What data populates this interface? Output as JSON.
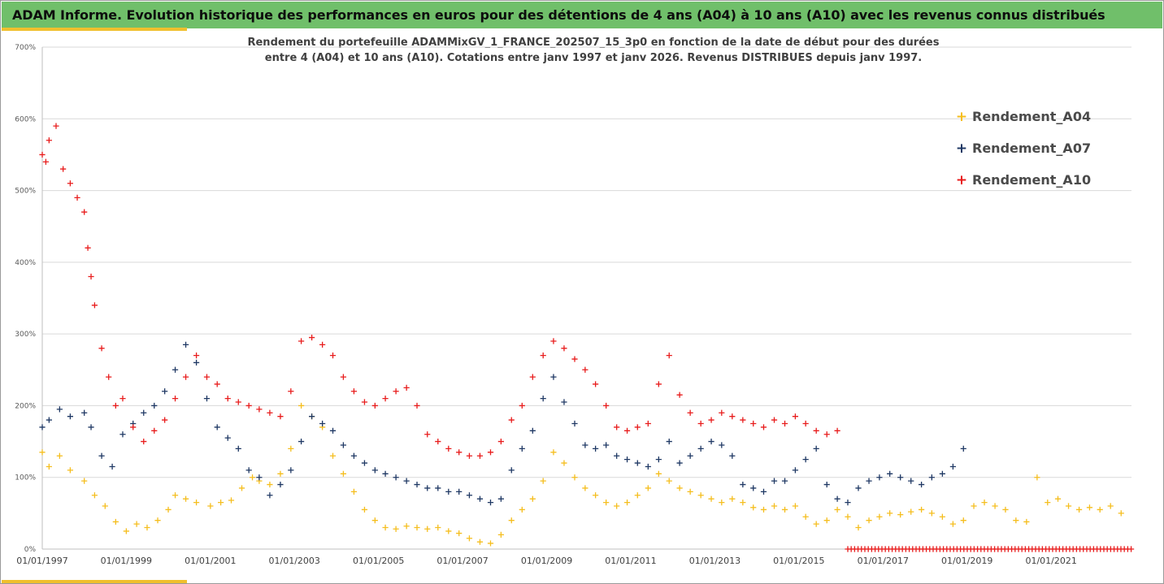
{
  "header": {
    "title": "ADAM Informe. Evolution historique des performances en euros pour des détentions de 4 ans (A04) à 10 ans (A10) avec les revenus connus distribués"
  },
  "colors": {
    "banner": "#70bf6a",
    "accent": "#f0c02e",
    "A04": "#f5be1e",
    "A07": "#1f3864",
    "A10": "#e81c1c"
  },
  "chart_data": {
    "type": "scatter",
    "subtitle_lines": [
      "Rendement du portefeuille ADAMMixGV_1_FRANCE_202507_15_3p0  en fonction de la date de début pour des durées",
      "entre 4 (A04) et 10 ans (A10). Cotations entre janv 1997 et janv 2026. Revenus DISTRIBUES depuis janv 1997."
    ],
    "xlabel": "",
    "ylabel": "",
    "x_range": [
      "1997-01-01",
      "2022-11-30"
    ],
    "ylim": [
      0,
      700
    ],
    "y_ticks": [
      0,
      100,
      200,
      300,
      400,
      500,
      600,
      700
    ],
    "y_tick_labels": [
      "0%",
      "100%",
      "200%",
      "300%",
      "400%",
      "500%",
      "600%",
      "700%"
    ],
    "x_ticks": [
      "1997-01-01",
      "1999-01-01",
      "2001-01-01",
      "2003-01-01",
      "2005-01-01",
      "2007-01-01",
      "2009-01-01",
      "2011-01-01",
      "2013-01-01",
      "2015-01-01",
      "2017-01-01",
      "2019-01-01",
      "2021-01-01"
    ],
    "x_tick_labels": [
      "01/01/1997",
      "01/01/1999",
      "01/01/2001",
      "01/01/2003",
      "01/01/2005",
      "01/01/2007",
      "01/01/2009",
      "01/01/2011",
      "01/01/2013",
      "01/01/2015",
      "01/01/2017",
      "01/01/2019",
      "01/01/2021"
    ],
    "grid": "horizontal",
    "legend_position": "top-right",
    "series": [
      {
        "name": "Rendement_A04",
        "color": "#f5be1e",
        "x": [
          "1997-01-01",
          "1997-03-01",
          "1997-06-01",
          "1997-09-01",
          "1998-01-01",
          "1998-04-01",
          "1998-07-01",
          "1998-10-01",
          "1999-01-01",
          "1999-04-01",
          "1999-07-01",
          "1999-10-01",
          "2000-01-01",
          "2000-03-01",
          "2000-06-01",
          "2000-09-01",
          "2001-01-01",
          "2001-04-01",
          "2001-07-01",
          "2001-10-01",
          "2002-01-01",
          "2002-03-01",
          "2002-06-01",
          "2002-09-01",
          "2002-12-01",
          "2003-03-01",
          "2003-06-01",
          "2003-09-01",
          "2003-12-01",
          "2004-03-01",
          "2004-06-01",
          "2004-09-01",
          "2004-12-01",
          "2005-03-01",
          "2005-06-01",
          "2005-09-01",
          "2005-12-01",
          "2006-03-01",
          "2006-06-01",
          "2006-09-01",
          "2006-12-01",
          "2007-03-01",
          "2007-06-01",
          "2007-09-01",
          "2007-12-01",
          "2008-03-01",
          "2008-06-01",
          "2008-09-01",
          "2008-12-01",
          "2009-03-01",
          "2009-06-01",
          "2009-09-01",
          "2009-12-01",
          "2010-03-01",
          "2010-06-01",
          "2010-09-01",
          "2010-12-01",
          "2011-03-01",
          "2011-06-01",
          "2011-09-01",
          "2011-12-01",
          "2012-03-01",
          "2012-06-01",
          "2012-09-01",
          "2012-12-01",
          "2013-03-01",
          "2013-06-01",
          "2013-09-01",
          "2013-12-01",
          "2014-03-01",
          "2014-06-01",
          "2014-09-01",
          "2014-12-01",
          "2015-03-01",
          "2015-06-01",
          "2015-09-01",
          "2015-12-01",
          "2016-03-01",
          "2016-06-01",
          "2016-09-01",
          "2016-12-01",
          "2017-03-01",
          "2017-06-01",
          "2017-09-01",
          "2017-12-01",
          "2018-03-01",
          "2018-06-01",
          "2018-09-01",
          "2018-12-01",
          "2019-03-01",
          "2019-06-01",
          "2019-09-01",
          "2019-12-01",
          "2020-03-01",
          "2020-06-01",
          "2020-09-01",
          "2020-12-01",
          "2021-03-01",
          "2021-06-01",
          "2021-09-01",
          "2021-12-01",
          "2022-03-01",
          "2022-06-01",
          "2022-09-01"
        ],
        "y": [
          135,
          115,
          130,
          110,
          95,
          75,
          60,
          38,
          25,
          35,
          30,
          40,
          55,
          75,
          70,
          65,
          60,
          65,
          68,
          85,
          100,
          95,
          90,
          105,
          140,
          200,
          185,
          170,
          130,
          105,
          80,
          55,
          40,
          30,
          28,
          32,
          30,
          28,
          30,
          25,
          22,
          15,
          10,
          8,
          20,
          40,
          55,
          70,
          95,
          135,
          120,
          100,
          85,
          75,
          65,
          60,
          65,
          75,
          85,
          105,
          95,
          85,
          80,
          75,
          70,
          65,
          70,
          65,
          58,
          55,
          60,
          55,
          60,
          45,
          35,
          40,
          55,
          45,
          30,
          40,
          45,
          50,
          48,
          52,
          55,
          50,
          45,
          35,
          40,
          60,
          65,
          60,
          55,
          40,
          38,
          100,
          65,
          70,
          60,
          55,
          58,
          55,
          60,
          50
        ]
      },
      {
        "name": "Rendement_A07",
        "color": "#1f3864",
        "x": [
          "1997-01-01",
          "1997-03-01",
          "1997-06-01",
          "1997-09-01",
          "1998-01-01",
          "1998-03-01",
          "1998-06-01",
          "1998-09-01",
          "1998-12-01",
          "1999-03-01",
          "1999-06-01",
          "1999-09-01",
          "1999-12-01",
          "2000-03-01",
          "2000-06-01",
          "2000-09-01",
          "2000-12-01",
          "2001-03-01",
          "2001-06-01",
          "2001-09-01",
          "2001-12-01",
          "2002-03-01",
          "2002-06-01",
          "2002-09-01",
          "2002-12-01",
          "2003-03-01",
          "2003-06-01",
          "2003-09-01",
          "2003-12-01",
          "2004-03-01",
          "2004-06-01",
          "2004-09-01",
          "2004-12-01",
          "2005-03-01",
          "2005-06-01",
          "2005-09-01",
          "2005-12-01",
          "2006-03-01",
          "2006-06-01",
          "2006-09-01",
          "2006-12-01",
          "2007-03-01",
          "2007-06-01",
          "2007-09-01",
          "2007-12-01",
          "2008-03-01",
          "2008-06-01",
          "2008-09-01",
          "2008-12-01",
          "2009-03-01",
          "2009-06-01",
          "2009-09-01",
          "2009-12-01",
          "2010-03-01",
          "2010-06-01",
          "2010-09-01",
          "2010-12-01",
          "2011-03-01",
          "2011-06-01",
          "2011-09-01",
          "2011-12-01",
          "2012-03-01",
          "2012-06-01",
          "2012-09-01",
          "2012-12-01",
          "2013-03-01",
          "2013-06-01",
          "2013-09-01",
          "2013-12-01",
          "2014-03-01",
          "2014-06-01",
          "2014-09-01",
          "2014-12-01",
          "2015-03-01",
          "2015-06-01",
          "2015-09-01",
          "2015-12-01",
          "2016-03-01",
          "2016-06-01",
          "2016-09-01",
          "2016-12-01",
          "2017-03-01",
          "2017-06-01",
          "2017-09-01",
          "2017-12-01",
          "2018-03-01",
          "2018-06-01",
          "2018-09-01",
          "2018-12-01"
        ],
        "y": [
          170,
          180,
          195,
          185,
          190,
          170,
          130,
          115,
          160,
          175,
          190,
          200,
          220,
          250,
          285,
          260,
          210,
          170,
          155,
          140,
          110,
          100,
          75,
          90,
          110,
          150,
          185,
          175,
          165,
          145,
          130,
          120,
          110,
          105,
          100,
          95,
          90,
          85,
          85,
          80,
          80,
          75,
          70,
          65,
          70,
          110,
          140,
          165,
          210,
          240,
          205,
          175,
          145,
          140,
          145,
          130,
          125,
          120,
          115,
          125,
          150,
          120,
          130,
          140,
          150,
          145,
          130,
          90,
          85,
          80,
          95,
          95,
          110,
          125,
          140,
          90,
          70,
          65,
          85,
          95,
          100,
          105,
          100,
          95,
          90,
          100,
          105,
          115,
          140
        ]
      },
      {
        "name": "Rendement_A10",
        "color": "#e81c1c",
        "x": [
          "1997-01-01",
          "1997-02-01",
          "1997-03-01",
          "1997-05-01",
          "1997-07-01",
          "1997-09-01",
          "1997-11-01",
          "1998-01-01",
          "1998-02-01",
          "1998-03-01",
          "1998-04-01",
          "1998-06-01",
          "1998-08-01",
          "1998-10-01",
          "1998-12-01",
          "1999-03-01",
          "1999-06-01",
          "1999-09-01",
          "1999-12-01",
          "2000-03-01",
          "2000-06-01",
          "2000-09-01",
          "2000-12-01",
          "2001-03-01",
          "2001-06-01",
          "2001-09-01",
          "2001-12-01",
          "2002-03-01",
          "2002-06-01",
          "2002-09-01",
          "2002-12-01",
          "2003-03-01",
          "2003-06-01",
          "2003-09-01",
          "2003-12-01",
          "2004-03-01",
          "2004-06-01",
          "2004-09-01",
          "2004-12-01",
          "2005-03-01",
          "2005-06-01",
          "2005-09-01",
          "2005-12-01",
          "2006-03-01",
          "2006-06-01",
          "2006-09-01",
          "2006-12-01",
          "2007-03-01",
          "2007-06-01",
          "2007-09-01",
          "2007-12-01",
          "2008-03-01",
          "2008-06-01",
          "2008-09-01",
          "2008-12-01",
          "2009-03-01",
          "2009-06-01",
          "2009-09-01",
          "2009-12-01",
          "2010-03-01",
          "2010-06-01",
          "2010-09-01",
          "2010-12-01",
          "2011-03-01",
          "2011-06-01",
          "2011-09-01",
          "2011-12-01",
          "2012-03-01",
          "2012-06-01",
          "2012-09-01",
          "2012-12-01",
          "2013-03-01",
          "2013-06-01",
          "2013-09-01",
          "2013-12-01",
          "2014-03-01",
          "2014-06-01",
          "2014-09-01",
          "2014-12-01",
          "2015-03-01",
          "2015-06-01",
          "2015-09-01",
          "2015-12-01"
        ],
        "y": [
          550,
          540,
          570,
          590,
          530,
          510,
          490,
          470,
          420,
          380,
          340,
          280,
          240,
          200,
          210,
          170,
          150,
          165,
          180,
          210,
          240,
          270,
          240,
          230,
          210,
          205,
          200,
          195,
          190,
          185,
          220,
          290,
          295,
          285,
          270,
          240,
          220,
          205,
          200,
          210,
          220,
          225,
          200,
          160,
          150,
          140,
          135,
          130,
          130,
          135,
          150,
          180,
          200,
          240,
          270,
          290,
          280,
          265,
          250,
          230,
          200,
          170,
          165,
          170,
          175,
          230,
          270,
          215,
          190,
          175,
          180,
          190,
          185,
          180,
          175,
          170,
          180,
          175,
          185,
          175,
          165,
          160,
          165
        ]
      },
      {
        "name": "",
        "color": "#e81c1c",
        "x_range": [
          "2016-03-01",
          "2022-11-30"
        ],
        "y_constant": 0
      }
    ]
  }
}
